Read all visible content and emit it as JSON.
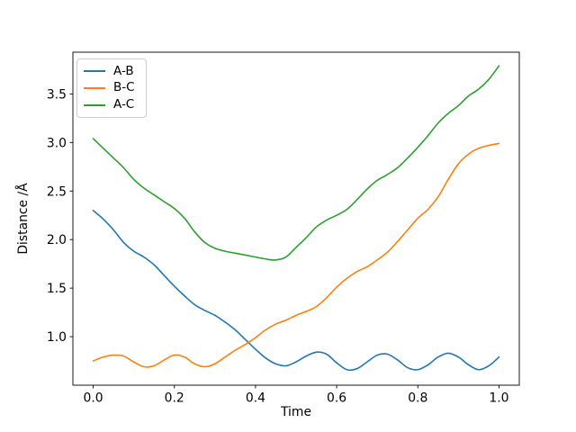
{
  "figure": {
    "background": "#ffffff",
    "frame_color": "#000000"
  },
  "chart_data": {
    "type": "line",
    "title": "",
    "xlabel": "Time",
    "ylabel": "Distance /Å",
    "xlim": [
      -0.05,
      1.05
    ],
    "ylim": [
      0.5,
      3.93
    ],
    "grid": false,
    "legend": {
      "position": "upper left",
      "entries": [
        "A-B",
        "B-C",
        "A-C"
      ]
    },
    "x_ticks": {
      "values": [
        0.0,
        0.2,
        0.4,
        0.6,
        0.8,
        1.0
      ],
      "labels": [
        "0.0",
        "0.2",
        "0.4",
        "0.6",
        "0.8",
        "1.0"
      ]
    },
    "y_ticks": {
      "values": [
        1.0,
        1.5,
        2.0,
        2.5,
        3.0,
        3.5
      ],
      "labels": [
        "1.0",
        "1.5",
        "2.0",
        "2.5",
        "3.0",
        "3.5"
      ]
    },
    "x": [
      0,
      0.025,
      0.05,
      0.075,
      0.1,
      0.125,
      0.15,
      0.175,
      0.2,
      0.225,
      0.25,
      0.275,
      0.3,
      0.325,
      0.35,
      0.375,
      0.4,
      0.425,
      0.45,
      0.475,
      0.5,
      0.525,
      0.55,
      0.575,
      0.6,
      0.625,
      0.65,
      0.675,
      0.7,
      0.725,
      0.75,
      0.775,
      0.8,
      0.825,
      0.85,
      0.875,
      0.9,
      0.925,
      0.95,
      0.975,
      1
    ],
    "series": [
      {
        "name": "A-B",
        "color": "#1f77b4",
        "values": [
          2.3,
          2.21,
          2.1,
          1.97,
          1.88,
          1.82,
          1.74,
          1.63,
          1.52,
          1.42,
          1.33,
          1.27,
          1.22,
          1.15,
          1.07,
          0.97,
          0.87,
          0.78,
          0.72,
          0.7,
          0.74,
          0.8,
          0.84,
          0.82,
          0.73,
          0.66,
          0.67,
          0.74,
          0.81,
          0.82,
          0.76,
          0.68,
          0.66,
          0.71,
          0.79,
          0.83,
          0.79,
          0.71,
          0.66,
          0.7,
          0.79
        ]
      },
      {
        "name": "B-C",
        "color": "#ff7f0e",
        "values": [
          0.75,
          0.79,
          0.81,
          0.8,
          0.74,
          0.69,
          0.7,
          0.76,
          0.81,
          0.79,
          0.72,
          0.69,
          0.72,
          0.79,
          0.86,
          0.92,
          0.99,
          1.07,
          1.13,
          1.17,
          1.22,
          1.26,
          1.31,
          1.4,
          1.51,
          1.6,
          1.67,
          1.72,
          1.79,
          1.87,
          1.98,
          2.1,
          2.22,
          2.31,
          2.44,
          2.62,
          2.78,
          2.88,
          2.94,
          2.97,
          2.99
        ]
      },
      {
        "name": "A-C",
        "color": "#2ca02c",
        "values": [
          3.04,
          2.94,
          2.84,
          2.74,
          2.62,
          2.53,
          2.46,
          2.39,
          2.32,
          2.22,
          2.08,
          1.97,
          1.91,
          1.88,
          1.86,
          1.84,
          1.82,
          1.8,
          1.79,
          1.82,
          1.92,
          2.02,
          2.13,
          2.2,
          2.25,
          2.31,
          2.41,
          2.52,
          2.61,
          2.67,
          2.74,
          2.84,
          2.95,
          3.07,
          3.2,
          3.3,
          3.38,
          3.48,
          3.55,
          3.65,
          3.79
        ]
      }
    ]
  }
}
